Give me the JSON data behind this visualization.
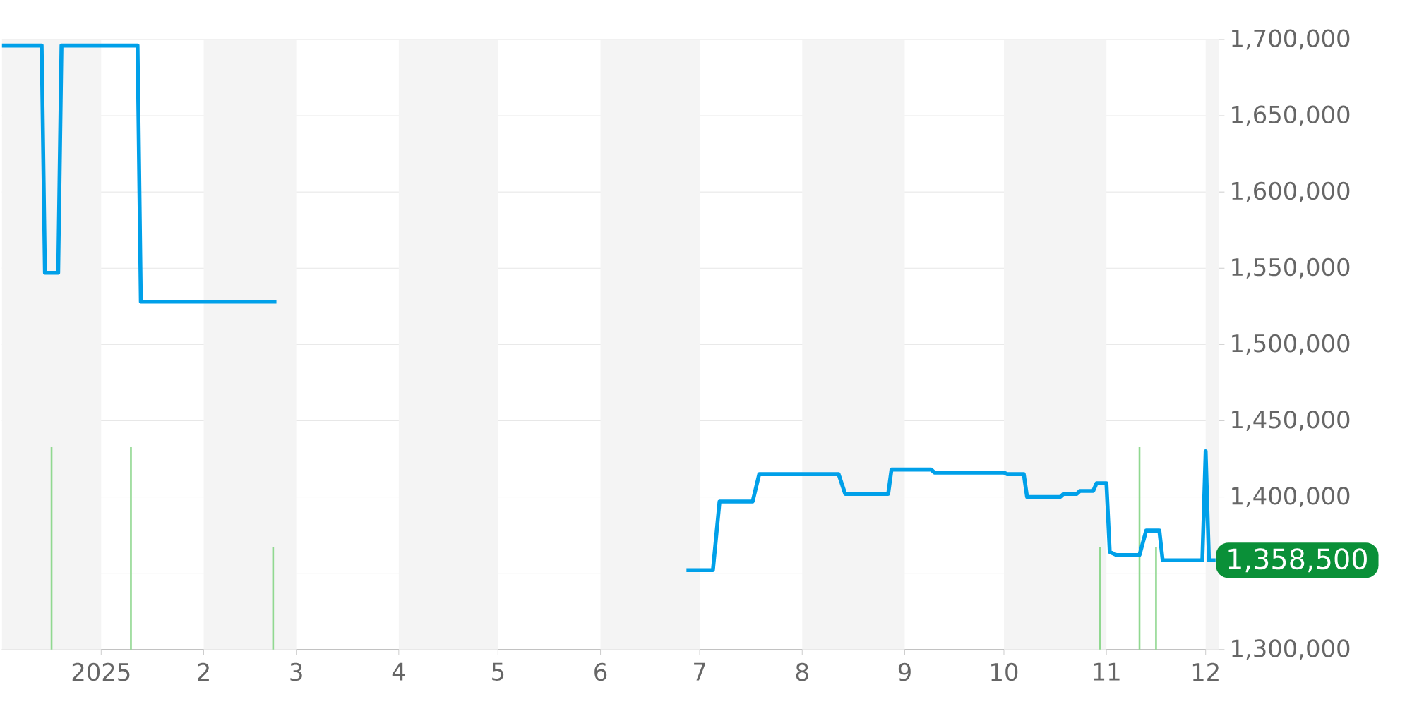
{
  "chart_data": {
    "type": "line",
    "xlim": [
      "2024-12-02",
      "2025-12-05"
    ],
    "xticks": [
      {
        "value": "2025-01-01",
        "label": "2025"
      },
      {
        "value": "2025-02-01",
        "label": "2"
      },
      {
        "value": "2025-03-01",
        "label": "3"
      },
      {
        "value": "2025-04-01",
        "label": "4"
      },
      {
        "value": "2025-05-01",
        "label": "5"
      },
      {
        "value": "2025-06-01",
        "label": "6"
      },
      {
        "value": "2025-07-01",
        "label": "7"
      },
      {
        "value": "2025-08-01",
        "label": "8"
      },
      {
        "value": "2025-09-01",
        "label": "9"
      },
      {
        "value": "2025-10-01",
        "label": "10"
      },
      {
        "value": "2025-11-01",
        "label": "11"
      },
      {
        "value": "2025-12-01",
        "label": "12"
      }
    ],
    "ylim": [
      1300000,
      1700000
    ],
    "yticks": [
      {
        "value": 1300000,
        "label": "1,300,000"
      },
      {
        "value": 1350000,
        "label": null
      },
      {
        "value": 1400000,
        "label": "1,400,000"
      },
      {
        "value": 1450000,
        "label": "1,450,000"
      },
      {
        "value": 1500000,
        "label": "1,500,000"
      },
      {
        "value": 1550000,
        "label": "1,550,000"
      },
      {
        "value": 1600000,
        "label": "1,600,000"
      },
      {
        "value": 1650000,
        "label": "1,650,000"
      },
      {
        "value": 1700000,
        "label": "1,700,000"
      }
    ],
    "grid": "y",
    "bands": [
      {
        "axis": "x",
        "from": "2024-12-02",
        "to": "2025-01-01",
        "color": "#f4f4f4"
      },
      {
        "axis": "x",
        "from": "2025-02-01",
        "to": "2025-03-01",
        "color": "#f4f4f4"
      },
      {
        "axis": "x",
        "from": "2025-04-01",
        "to": "2025-05-01",
        "color": "#f4f4f4"
      },
      {
        "axis": "x",
        "from": "2025-06-01",
        "to": "2025-07-01",
        "color": "#f4f4f4"
      },
      {
        "axis": "x",
        "from": "2025-08-01",
        "to": "2025-09-01",
        "color": "#f4f4f4"
      },
      {
        "axis": "x",
        "from": "2025-10-01",
        "to": "2025-11-01",
        "color": "#f4f4f4"
      },
      {
        "axis": "x",
        "from": "2025-12-01",
        "to": "2025-12-05",
        "color": "#f4f4f4"
      }
    ],
    "series": [
      {
        "type": "bar",
        "color": "#90d890",
        "x": [
          "2024-12-17",
          "2025-01-10",
          "2025-02-22",
          "2025-10-30",
          "2025-11-11",
          "2025-11-16"
        ],
        "values": [
          1433000,
          1433000,
          1367000,
          1367000,
          1433000,
          1367000
        ]
      },
      {
        "color": "#00a0e9",
        "x": [
          "2024-12-02",
          "2024-12-14",
          "2024-12-15",
          "2024-12-19",
          "2024-12-20",
          "2025-01-12",
          "2025-01-13",
          "2025-02-23",
          "2025-04-15",
          "2025-06-27",
          "2025-07-05",
          "2025-07-07",
          "2025-07-17",
          "2025-07-19",
          "2025-08-12",
          "2025-08-14",
          "2025-08-27",
          "2025-08-28",
          "2025-09-09",
          "2025-09-10",
          "2025-10-01",
          "2025-10-02",
          "2025-10-07",
          "2025-10-08",
          "2025-10-18",
          "2025-10-19",
          "2025-10-23",
          "2025-10-24",
          "2025-10-28",
          "2025-10-29",
          "2025-11-01",
          "2025-11-02",
          "2025-11-04",
          "2025-11-11",
          "2025-11-13",
          "2025-11-17",
          "2025-11-18",
          "2025-11-30",
          "2025-12-01",
          "2025-12-02",
          "2025-12-04"
        ],
        "values": [
          1696000,
          1696000,
          1547000,
          1547000,
          1696000,
          1696000,
          1528000,
          1528000,
          null,
          1352000,
          1352000,
          1397000,
          1397000,
          1415000,
          1415000,
          1402000,
          1402000,
          1418000,
          1418000,
          1416000,
          1416000,
          1415000,
          1415000,
          1400000,
          1400000,
          1402000,
          1402000,
          1404000,
          1404000,
          1409000,
          1409000,
          1364000,
          1362000,
          1362000,
          1378000,
          1378000,
          1358500,
          1358500,
          1430000,
          1358500,
          1358500
        ]
      }
    ],
    "annotations": [
      {
        "text": "1,358,500",
        "x": "2025-12-04",
        "y": 1358500
      }
    ]
  }
}
